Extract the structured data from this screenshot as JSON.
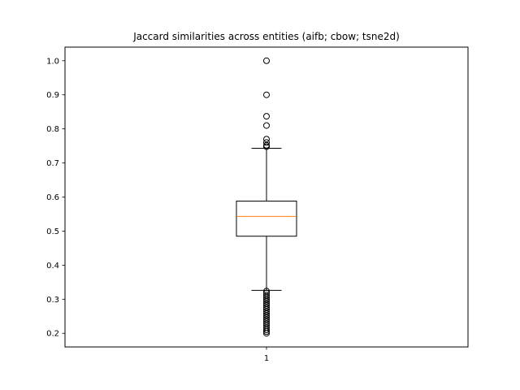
{
  "chart_data": {
    "type": "boxplot",
    "title": "Jaccard similarities across entities (aifb; cbow; tsne2d)",
    "xlabel": "",
    "ylabel": "",
    "categories": [
      "1"
    ],
    "ylim": [
      0.16,
      1.04
    ],
    "yticks": [
      0.2,
      0.3,
      0.4,
      0.5,
      0.6,
      0.7,
      0.8,
      0.9,
      1.0
    ],
    "ytick_labels": [
      "0.2",
      "0.3",
      "0.4",
      "0.5",
      "0.6",
      "0.7",
      "0.8",
      "0.9",
      "1.0"
    ],
    "grid": false,
    "box": {
      "q1": 0.485,
      "median": 0.543,
      "q3": 0.588,
      "whisker_low": 0.326,
      "whisker_high": 0.743
    },
    "outliers": [
      1.0,
      0.9,
      0.837,
      0.81,
      0.77,
      0.76,
      0.752,
      0.748,
      0.324,
      0.318,
      0.312,
      0.306,
      0.3,
      0.294,
      0.288,
      0.282,
      0.276,
      0.27,
      0.264,
      0.258,
      0.252,
      0.246,
      0.24,
      0.234,
      0.228,
      0.222,
      0.216,
      0.21,
      0.205,
      0.2
    ],
    "colors": {
      "box": "#000000",
      "median": "#ff7f0e",
      "whisker": "#000000",
      "outlier": "#000000"
    }
  }
}
